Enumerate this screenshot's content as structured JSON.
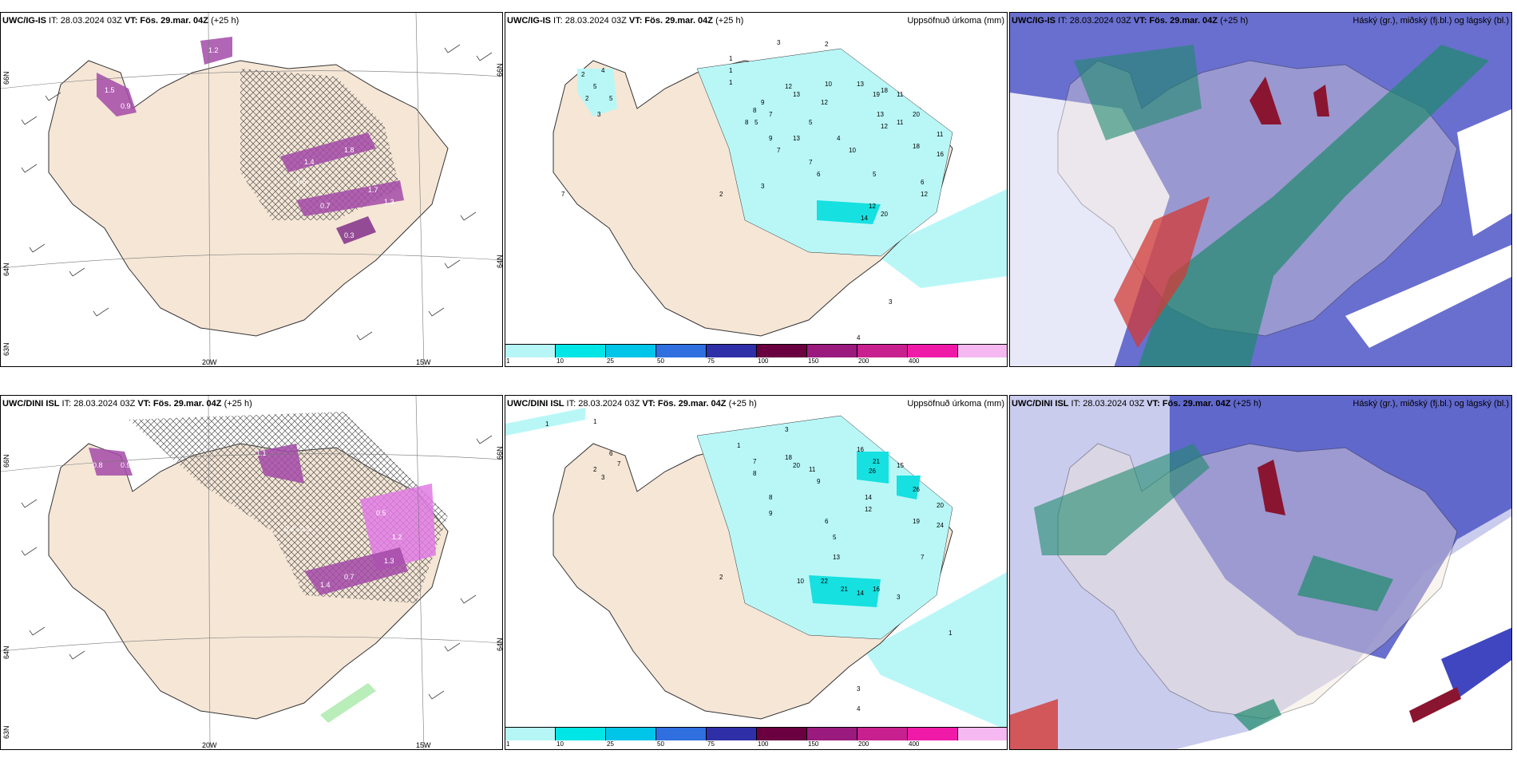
{
  "panels": {
    "p1": {
      "header_prefix": "UWC/IG-IS",
      "header_mid": " IT: 28.03.2024 03Z ",
      "header_vt": "VT: Fös. 29.mar. 04Z",
      "header_lead": " (+25 h)",
      "lon_labels": [
        "20W",
        "15W"
      ],
      "lat_labels": [
        "66N",
        "64N",
        "63N",
        "66N",
        "64N"
      ],
      "values": [
        "1.5",
        "1.4",
        "1.8",
        "0.7",
        "1.7",
        "1.3",
        "0.3",
        "1.2",
        "0.9",
        "1.6"
      ]
    },
    "p2": {
      "header_prefix": "UWC/IG-IS",
      "header_mid": " IT: 28.03.2024 03Z ",
      "header_vt": "VT: Fös. 29.mar. 04Z",
      "header_lead": " (+25 h)",
      "header_right": "Uppsöfnuð úrkoma (mm)",
      "values": [
        "3",
        "2",
        "1",
        "1",
        "1",
        "12",
        "13",
        "10",
        "13",
        "19",
        "18",
        "11",
        "9",
        "8",
        "5",
        "7",
        "9",
        "7",
        "12",
        "5",
        "20",
        "11",
        "13",
        "12",
        "13",
        "10",
        "4",
        "11",
        "18",
        "16",
        "12",
        "12",
        "5",
        "6",
        "7",
        "6",
        "14",
        "20",
        "4",
        "3",
        "2",
        "5",
        "4",
        "5",
        "3",
        "2",
        "2",
        "3",
        "7",
        "8"
      ]
    },
    "p3": {
      "header_prefix": "UWC/IG-IS",
      "header_mid": " IT: 28.03.2024 03Z ",
      "header_vt": "VT: Fös. 29.mar. 04Z",
      "header_lead": " (+25 h)",
      "header_right": "Háský (gr.), miðský (fj.bl.) og lágský (bl.)"
    },
    "p4": {
      "header_prefix": "UWC/DINI ISL",
      "header_mid": " IT: 28.03.2024 03Z ",
      "header_vt": "VT: Fös. 29.mar. 04Z",
      "header_lead": " (+25 h)",
      "lon_labels": [
        "20W",
        "15W"
      ],
      "lat_labels": [
        "66N",
        "64N",
        "63N",
        "66N",
        "64N"
      ],
      "values": [
        "0.4",
        "0.4",
        "1.1",
        "0.8",
        "0.5",
        "1.2",
        "1.4",
        "0.9",
        "1.3",
        "0.7"
      ]
    },
    "p5": {
      "header_prefix": "UWC/DINI ISL",
      "header_mid": " IT: 28.03.2024 03Z ",
      "header_vt": "VT: Fös. 29.mar. 04Z",
      "header_lead": " (+25 h)",
      "header_right": "Uppsöfnuð úrkoma (mm)",
      "values": [
        "1",
        "1",
        "2",
        "3",
        "6",
        "7",
        "1",
        "3",
        "7",
        "8",
        "18",
        "20",
        "11",
        "9",
        "16",
        "21",
        "26",
        "15",
        "8",
        "9",
        "14",
        "12",
        "26",
        "20",
        "19",
        "24",
        "22",
        "21",
        "16",
        "14",
        "7",
        "10",
        "3",
        "1",
        "2",
        "3",
        "4",
        "13",
        "6",
        "5"
      ]
    },
    "p6": {
      "header_prefix": "UWC/DINI ISL",
      "header_mid": " IT: 28.03.2024 03Z ",
      "header_vt": "VT: Fös. 29.mar. 04Z",
      "header_lead": " (+25 h)",
      "header_right": "Háský (gr.), miðský (fj.bl.) og lágský (bl.)"
    }
  },
  "colorbar": {
    "labels": [
      "1",
      "10",
      "25",
      "50",
      "75",
      "100",
      "150",
      "200",
      "400",
      ""
    ],
    "colors": [
      "#b7f6f6",
      "#00e5e5",
      "#00c5e8",
      "#2f6fe0",
      "#2f2fa8",
      "#6a0040",
      "#9a1a7e",
      "#c8208e",
      "#f01aa8",
      "#f5b8f0"
    ]
  },
  "colors": {
    "land": "#f5e6d6",
    "sea": "#ffffff",
    "precip_light": "#b9f7f7",
    "precip_mid": "#16e0e0",
    "ice_purple": "#a34aa8",
    "ice_light": "#e07ae4",
    "cloud_high": "#4f56c6",
    "cloud_mid": "#1e8a6c",
    "cloud_low": "#d23a35"
  }
}
